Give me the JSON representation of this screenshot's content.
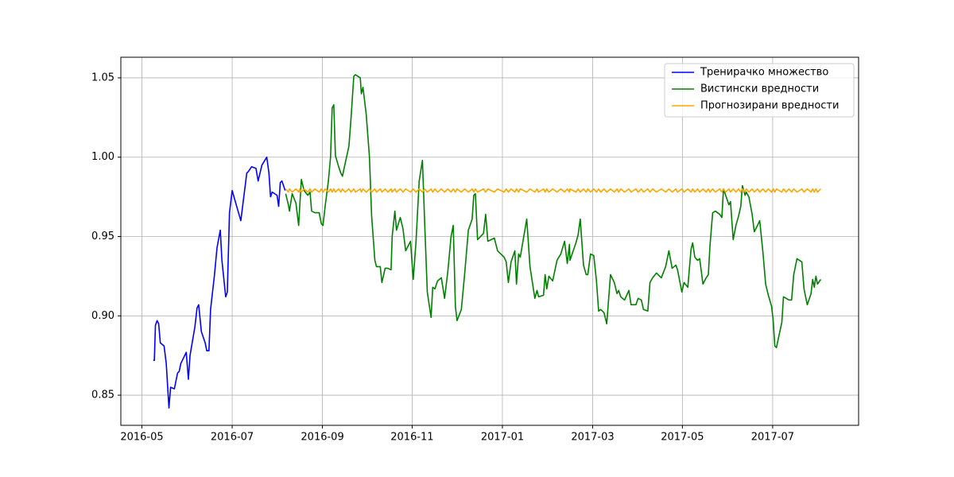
{
  "chart_data": {
    "type": "line",
    "legend": "upper right",
    "grid": true,
    "xlim": [
      2016.294,
      2017.659
    ],
    "xticks": [
      {
        "value": 2016.333,
        "label": "2016-05"
      },
      {
        "value": 2016.5,
        "label": "2016-07"
      },
      {
        "value": 2016.667,
        "label": "2016-09"
      },
      {
        "value": 2016.833,
        "label": "2016-11"
      },
      {
        "value": 2017.0,
        "label": "2017-01"
      },
      {
        "value": 2017.167,
        "label": "2017-03"
      },
      {
        "value": 2017.333,
        "label": "2017-05"
      },
      {
        "value": 2017.5,
        "label": "2017-07"
      }
    ],
    "ylim": [
      0.831,
      1.063
    ],
    "yticks": [
      0.85,
      {
        "value": 0.9,
        "label": "0.90"
      },
      0.95,
      {
        "value": 1.0,
        "label": "1.00"
      },
      1.05
    ],
    "x": [
      2016.599,
      2016.604,
      2016.606,
      2016.611,
      2016.618,
      2016.623,
      2016.625,
      2016.628,
      2016.633,
      2016.64,
      2016.644,
      2016.647,
      2016.653,
      2016.661,
      2016.665,
      2016.668,
      2016.672,
      2016.678,
      2016.682,
      2016.685,
      2016.688,
      2016.691,
      2016.697,
      2016.701,
      2016.704,
      2016.709,
      2016.716,
      2016.72,
      2016.725,
      2016.728,
      2016.737,
      2016.739,
      2016.742,
      2016.748,
      2016.754,
      2016.758,
      2016.764,
      2016.767,
      2016.774,
      2016.777,
      2016.783,
      2016.788,
      2016.794,
      2016.796,
      2016.801,
      2016.804,
      2016.811,
      2016.816,
      2016.821,
      2016.83,
      2016.835,
      2016.84,
      2016.846,
      2016.852,
      2016.856,
      2016.861,
      2016.868,
      2016.871,
      2016.875,
      2016.88,
      2016.887,
      2016.893,
      2016.899,
      2016.905,
      2016.909,
      2016.913,
      2016.916,
      2016.924,
      2016.93,
      2016.937,
      2016.944,
      2016.947,
      2016.95,
      2016.954,
      2016.965,
      2016.969,
      2016.973,
      2016.985,
      2016.991,
      2017.003,
      2017.007,
      2017.011,
      2017.016,
      2017.023,
      2017.026,
      2017.03,
      2017.033,
      2017.045,
      2017.051,
      2017.06,
      2017.064,
      2017.067,
      2017.076,
      2017.079,
      2017.082,
      2017.086,
      2017.093,
      2017.101,
      2017.108,
      2017.115,
      2017.12,
      2017.124,
      2017.125,
      2017.136,
      2017.14,
      2017.144,
      2017.15,
      2017.155,
      2017.158,
      2017.163,
      2017.169,
      2017.174,
      2017.178,
      2017.182,
      2017.188,
      2017.193,
      2017.2,
      2017.207,
      2017.212,
      2017.215,
      2017.219,
      2017.226,
      2017.234,
      2017.238,
      2017.247,
      2017.251,
      2017.257,
      2017.261,
      2017.269,
      2017.273,
      2017.278,
      2017.285,
      2017.294,
      2017.302,
      2017.308,
      2017.314,
      2017.321,
      2017.324,
      2017.332,
      2017.336,
      2017.343,
      2017.349,
      2017.352,
      2017.356,
      2017.361,
      2017.365,
      2017.371,
      2017.377,
      2017.381,
      2017.384,
      2017.389,
      2017.394,
      2017.402,
      2017.406,
      2017.409,
      2017.413,
      2017.419,
      2017.422,
      2017.427,
      2017.432,
      2017.437,
      2017.441,
      2017.444,
      2017.449,
      2017.451,
      2017.456,
      2017.462,
      2017.466,
      2017.472,
      2017.476,
      2017.482,
      2017.487,
      2017.492,
      2017.498,
      2017.501,
      2017.504,
      2017.507,
      2017.517,
      2017.52,
      2017.525,
      2017.53,
      2017.535,
      2017.539,
      2017.545,
      2017.554,
      2017.558,
      2017.564,
      2017.571,
      2017.574,
      2017.577,
      2017.58,
      2017.583,
      2017.589
    ],
    "series": [
      {
        "name": "Тренирачко множество",
        "color": "#0000ff",
        "x": [
          2016.354,
          2016.356,
          2016.358,
          2016.361,
          2016.364,
          2016.367,
          2016.374,
          2016.378,
          2016.383,
          2016.386,
          2016.393,
          2016.399,
          2016.402,
          2016.405,
          2016.415,
          2016.419,
          2016.422,
          2016.431,
          2016.435,
          2016.438,
          2016.443,
          2016.45,
          2016.453,
          2016.457,
          2016.46,
          2016.467,
          2016.472,
          2016.478,
          2016.481,
          2016.488,
          2016.491,
          2016.495,
          2016.5,
          2016.51,
          2016.516,
          2016.527,
          2016.53,
          2016.536,
          2016.544,
          2016.548,
          2016.555,
          2016.564,
          2016.568,
          2016.571,
          2016.574,
          2016.583,
          2016.586,
          2016.589,
          2016.592,
          2016.598
        ],
        "values": [
          0.872,
          0.872,
          0.894,
          0.897,
          0.895,
          0.883,
          0.881,
          0.87,
          0.842,
          0.855,
          0.854,
          0.864,
          0.865,
          0.87,
          0.877,
          0.86,
          0.875,
          0.893,
          0.905,
          0.907,
          0.89,
          0.883,
          0.878,
          0.878,
          0.904,
          0.925,
          0.943,
          0.954,
          0.935,
          0.912,
          0.915,
          0.965,
          0.979,
          0.967,
          0.96,
          0.99,
          0.991,
          0.994,
          0.993,
          0.985,
          0.995,
          1.0,
          0.99,
          0.975,
          0.978,
          0.976,
          0.969,
          0.984,
          0.985,
          0.979
        ]
      },
      {
        "name": "Вистински вредности",
        "color": "#008000",
        "values": [
          0.977,
          0.97,
          0.966,
          0.977,
          0.971,
          0.957,
          0.969,
          0.986,
          0.979,
          0.976,
          0.978,
          0.966,
          0.965,
          0.965,
          0.958,
          0.957,
          0.969,
          0.985,
          1.0,
          1.031,
          1.033,
          1.001,
          0.994,
          0.99,
          0.988,
          0.996,
          1.007,
          1.025,
          1.051,
          1.052,
          1.05,
          1.04,
          1.044,
          1.027,
          1.0,
          0.963,
          0.935,
          0.931,
          0.931,
          0.921,
          0.93,
          0.93,
          0.929,
          0.95,
          0.966,
          0.954,
          0.962,
          0.955,
          0.941,
          0.947,
          0.923,
          0.946,
          0.985,
          0.998,
          0.96,
          0.915,
          0.899,
          0.918,
          0.917,
          0.922,
          0.924,
          0.911,
          0.928,
          0.95,
          0.957,
          0.906,
          0.897,
          0.904,
          0.926,
          0.954,
          0.961,
          0.976,
          0.977,
          0.948,
          0.952,
          0.964,
          0.947,
          0.949,
          0.941,
          0.937,
          0.934,
          0.921,
          0.934,
          0.941,
          0.92,
          0.939,
          0.937,
          0.961,
          0.931,
          0.911,
          0.916,
          0.912,
          0.913,
          0.926,
          0.917,
          0.925,
          0.922,
          0.935,
          0.939,
          0.947,
          0.933,
          0.945,
          0.935,
          0.946,
          0.951,
          0.961,
          0.932,
          0.926,
          0.926,
          0.939,
          0.938,
          0.922,
          0.903,
          0.904,
          0.902,
          0.895,
          0.926,
          0.921,
          0.914,
          0.916,
          0.912,
          0.91,
          0.916,
          0.907,
          0.907,
          0.911,
          0.91,
          0.904,
          0.903,
          0.921,
          0.924,
          0.927,
          0.924,
          0.931,
          0.941,
          0.93,
          0.932,
          0.929,
          0.915,
          0.921,
          0.918,
          0.942,
          0.946,
          0.937,
          0.935,
          0.936,
          0.92,
          0.924,
          0.926,
          0.944,
          0.965,
          0.966,
          0.964,
          0.962,
          0.98,
          0.976,
          0.97,
          0.972,
          0.948,
          0.957,
          0.963,
          0.969,
          0.982,
          0.976,
          0.978,
          0.975,
          0.964,
          0.953,
          0.957,
          0.96,
          0.94,
          0.92,
          0.913,
          0.906,
          0.897,
          0.881,
          0.88,
          0.896,
          0.912,
          0.911,
          0.91,
          0.91,
          0.926,
          0.936,
          0.934,
          0.917,
          0.907,
          0.914,
          0.923,
          0.918,
          0.925,
          0.92,
          0.923
        ]
      },
      {
        "name": "Прогнозирани вредности",
        "color": "#ffa500",
        "values": [
          0.98,
          0.978,
          0.98,
          0.978,
          0.98,
          0.978,
          0.98,
          0.978,
          0.98,
          0.978,
          0.98,
          0.978,
          0.98,
          0.978,
          0.98,
          0.978,
          0.98,
          0.978,
          0.98,
          0.978,
          0.98,
          0.978,
          0.98,
          0.978,
          0.98,
          0.978,
          0.98,
          0.978,
          0.98,
          0.978,
          0.98,
          0.978,
          0.98,
          0.978,
          0.98,
          0.978,
          0.98,
          0.978,
          0.98,
          0.978,
          0.98,
          0.978,
          0.98,
          0.978,
          0.98,
          0.978,
          0.98,
          0.978,
          0.98,
          0.978,
          0.98,
          0.978,
          0.98,
          0.978,
          0.98,
          0.978,
          0.98,
          0.978,
          0.98,
          0.978,
          0.98,
          0.978,
          0.98,
          0.978,
          0.98,
          0.978,
          0.98,
          0.978,
          0.98,
          0.978,
          0.98,
          0.978,
          0.98,
          0.978,
          0.98,
          0.978,
          0.98,
          0.978,
          0.98,
          0.978,
          0.98,
          0.978,
          0.98,
          0.978,
          0.98,
          0.978,
          0.98,
          0.978,
          0.98,
          0.978,
          0.98,
          0.978,
          0.98,
          0.978,
          0.98,
          0.978,
          0.98,
          0.978,
          0.98,
          0.978,
          0.98,
          0.978,
          0.98,
          0.978,
          0.98,
          0.978,
          0.98,
          0.978,
          0.98,
          0.978,
          0.98,
          0.978,
          0.98,
          0.978,
          0.98,
          0.978,
          0.98,
          0.978,
          0.98,
          0.978,
          0.98,
          0.978,
          0.98,
          0.978,
          0.98,
          0.978,
          0.98,
          0.978,
          0.98,
          0.978,
          0.98,
          0.978,
          0.98,
          0.978,
          0.98,
          0.978,
          0.98,
          0.978,
          0.98,
          0.978,
          0.98,
          0.978,
          0.98,
          0.978,
          0.98,
          0.978,
          0.98,
          0.978,
          0.98,
          0.978,
          0.98,
          0.978,
          0.98,
          0.978,
          0.98,
          0.978,
          0.98,
          0.978,
          0.98,
          0.978,
          0.98,
          0.978,
          0.98,
          0.978,
          0.98,
          0.978,
          0.98,
          0.978,
          0.98,
          0.978,
          0.98,
          0.978,
          0.98,
          0.978,
          0.98,
          0.978,
          0.98,
          0.978,
          0.98,
          0.978,
          0.98,
          0.978,
          0.98,
          0.978,
          0.98,
          0.978,
          0.98,
          0.978,
          0.98,
          0.978,
          0.98,
          0.978,
          0.98
        ]
      }
    ]
  }
}
